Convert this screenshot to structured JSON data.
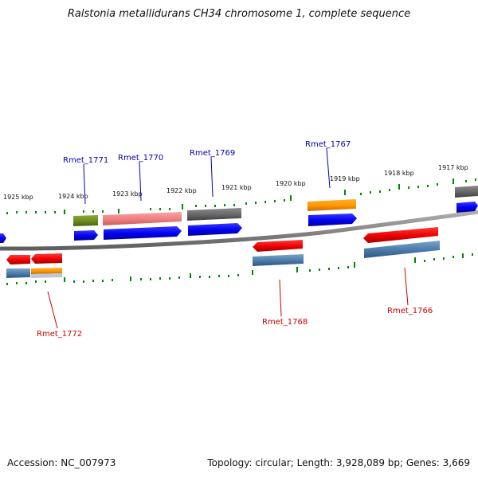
{
  "title": "Ralstonia metallidurans CH34 chromosome 1, complete sequence",
  "footer": {
    "accession": "Accession: NC_007973",
    "info": "Topology: circular; Length: 3,928,089 bp; Genes: 3,669"
  },
  "colors": {
    "forward_label": "#0000bb",
    "reverse_label": "#cc0000",
    "tick": "#008800",
    "backbone": "#808080"
  },
  "scale_labels": [
    "1925 kbp",
    "1924 kbp",
    "1923 kbp",
    "1922 kbp",
    "1921 kbp",
    "1920 kbp",
    "1919 kbp",
    "1918 kbp",
    "1917 kbp"
  ],
  "gene_labels": {
    "forward": [
      "Rmet_1771",
      "Rmet_1770",
      "Rmet_1769",
      "Rmet_1767"
    ],
    "reverse": [
      "Rmet_1772",
      "Rmet_1768",
      "Rmet_1766"
    ]
  }
}
